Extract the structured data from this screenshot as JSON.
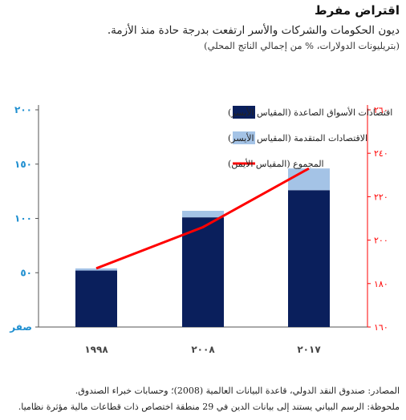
{
  "header": {
    "title": "اقتراض مفرط",
    "subtitle": "ديون الحكومات والشركات والأسر ارتفعت بدرجة حادة منذ الأزمة.",
    "units": "(بتريليونات الدولارات، % من إجمالي الناتج المحلي)"
  },
  "footer": {
    "sources": "المصادر: صندوق النقد الدولي، قاعدة البيانات العالمية (2008)؛ وحسابات خبراء الصندوق.",
    "note": "ملحوظة: الرسم البياني يستند إلى بيانات الدين في 29 منطقة اختصاص ذات قطاعات مالية مؤثرة نظاميا."
  },
  "colors": {
    "emerging": "#0a1f5c",
    "advanced": "#a4c3e6",
    "total": "#ff0000",
    "left_axis": "#1f8fd0",
    "right_axis": "#ff0000"
  },
  "chart_data": {
    "type": "bar",
    "stacked": true,
    "categories": [
      "١٩٩٨",
      "٢٠٠٨",
      "٢٠١٧"
    ],
    "series": [
      {
        "name": "اقتصادات الأسواق الصاعدة (المقياس الأيسر)",
        "values": [
          52,
          101,
          126
        ],
        "axis": "left",
        "color": "#0a1f5c"
      },
      {
        "name": "الاقتصادات المتقدمة (المقياس الأيسر)",
        "values": [
          2,
          6,
          20
        ],
        "axis": "left",
        "color": "#a4c3e6"
      },
      {
        "name": "المجموع (المقياس الأيمن)",
        "type": "line",
        "values": [
          187,
          206,
          233
        ],
        "axis": "right",
        "color": "#ff0000"
      }
    ],
    "y_left": {
      "ticks": [
        0,
        50,
        100,
        150,
        200
      ],
      "tick_labels": [
        "صفر",
        "٥٠",
        "١٠٠",
        "١٥٠",
        "٢٠٠"
      ],
      "ylim": [
        0,
        200
      ]
    },
    "y_right": {
      "ticks": [
        160,
        180,
        200,
        220,
        240,
        260
      ],
      "tick_labels": [
        "١٦٠",
        "١٨٠",
        "٢٠٠",
        "٢٢٠",
        "٢٤٠",
        "٢٦٠"
      ],
      "ylim": [
        160,
        260
      ]
    },
    "legend_position": "top-left",
    "grid": false
  }
}
